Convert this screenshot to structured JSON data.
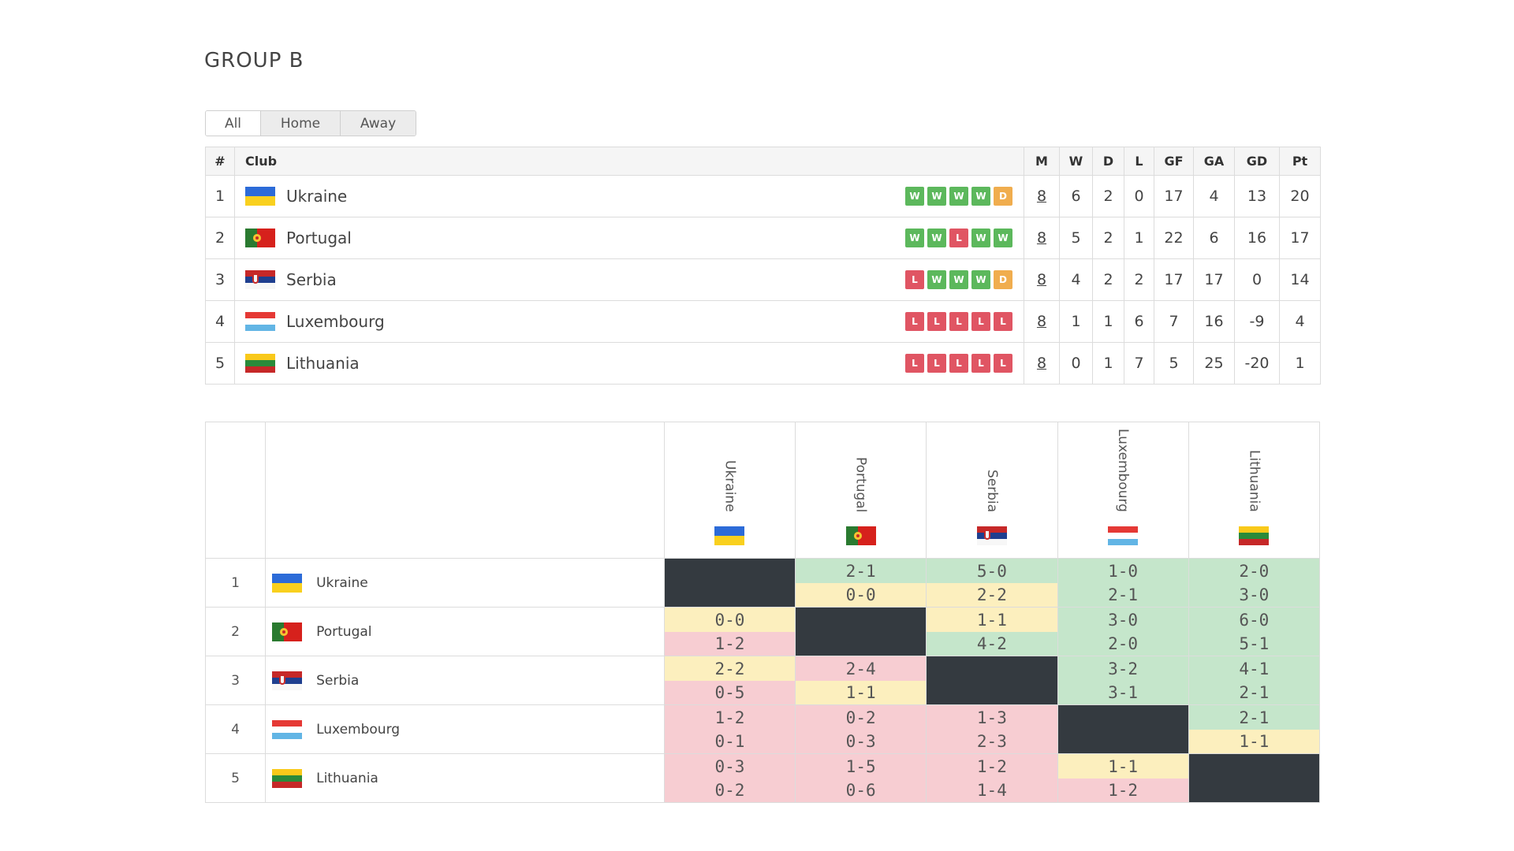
{
  "page": {
    "title": "GROUP B"
  },
  "tabs": [
    {
      "label": "All",
      "active": true
    },
    {
      "label": "Home",
      "active": false
    },
    {
      "label": "Away",
      "active": false
    }
  ],
  "colors": {
    "win": "#5cb85c",
    "draw": "#f0ad4e",
    "loss": "#e05563",
    "win_bg": "#c5e6cb",
    "draw_bg": "#fcefbe",
    "loss_bg": "#f7cdd2",
    "self_bg": "#343a40"
  },
  "standings": {
    "headers": [
      "#",
      "Club",
      "M",
      "W",
      "D",
      "L",
      "GF",
      "GA",
      "GD",
      "Pt"
    ],
    "rows": [
      {
        "pos": "1",
        "club": "Ukraine",
        "flag": "ukraine-flag-icon",
        "form": [
          "W",
          "W",
          "W",
          "W",
          "D"
        ],
        "m": "8",
        "w": "6",
        "d": "2",
        "l": "0",
        "gf": "17",
        "ga": "4",
        "gd": "13",
        "pt": "20"
      },
      {
        "pos": "2",
        "club": "Portugal",
        "flag": "portugal-flag-icon",
        "form": [
          "W",
          "W",
          "L",
          "W",
          "W"
        ],
        "m": "8",
        "w": "5",
        "d": "2",
        "l": "1",
        "gf": "22",
        "ga": "6",
        "gd": "16",
        "pt": "17"
      },
      {
        "pos": "3",
        "club": "Serbia",
        "flag": "serbia-flag-icon",
        "form": [
          "L",
          "W",
          "W",
          "W",
          "D"
        ],
        "m": "8",
        "w": "4",
        "d": "2",
        "l": "2",
        "gf": "17",
        "ga": "17",
        "gd": "0",
        "pt": "14"
      },
      {
        "pos": "4",
        "club": "Luxembourg",
        "flag": "luxembourg-flag-icon",
        "form": [
          "L",
          "L",
          "L",
          "L",
          "L"
        ],
        "m": "8",
        "w": "1",
        "d": "1",
        "l": "6",
        "gf": "7",
        "ga": "16",
        "gd": "-9",
        "pt": "4"
      },
      {
        "pos": "5",
        "club": "Lithuania",
        "flag": "lithuania-flag-icon",
        "form": [
          "L",
          "L",
          "L",
          "L",
          "L"
        ],
        "m": "8",
        "w": "0",
        "d": "1",
        "l": "7",
        "gf": "5",
        "ga": "25",
        "gd": "-20",
        "pt": "1"
      }
    ]
  },
  "results": {
    "columns": [
      "Ukraine",
      "Portugal",
      "Serbia",
      "Luxembourg",
      "Lithuania"
    ],
    "rows": [
      {
        "pos": "1",
        "club": "Ukraine",
        "cells": [
          null,
          [
            [
              "2-1",
              "win"
            ],
            [
              "0-0",
              "draw"
            ]
          ],
          [
            [
              "5-0",
              "win"
            ],
            [
              "2-2",
              "draw"
            ]
          ],
          [
            [
              "1-0",
              "win"
            ],
            [
              "2-1",
              "win"
            ]
          ],
          [
            [
              "2-0",
              "win"
            ],
            [
              "3-0",
              "win"
            ]
          ]
        ]
      },
      {
        "pos": "2",
        "club": "Portugal",
        "cells": [
          [
            [
              "0-0",
              "draw"
            ],
            [
              "1-2",
              "loss"
            ]
          ],
          null,
          [
            [
              "1-1",
              "draw"
            ],
            [
              "4-2",
              "win"
            ]
          ],
          [
            [
              "3-0",
              "win"
            ],
            [
              "2-0",
              "win"
            ]
          ],
          [
            [
              "6-0",
              "win"
            ],
            [
              "5-1",
              "win"
            ]
          ]
        ]
      },
      {
        "pos": "3",
        "club": "Serbia",
        "cells": [
          [
            [
              "2-2",
              "draw"
            ],
            [
              "0-5",
              "loss"
            ]
          ],
          [
            [
              "2-4",
              "loss"
            ],
            [
              "1-1",
              "draw"
            ]
          ],
          null,
          [
            [
              "3-2",
              "win"
            ],
            [
              "3-1",
              "win"
            ]
          ],
          [
            [
              "4-1",
              "win"
            ],
            [
              "2-1",
              "win"
            ]
          ]
        ]
      },
      {
        "pos": "4",
        "club": "Luxembourg",
        "cells": [
          [
            [
              "1-2",
              "loss"
            ],
            [
              "0-1",
              "loss"
            ]
          ],
          [
            [
              "0-2",
              "loss"
            ],
            [
              "0-3",
              "loss"
            ]
          ],
          [
            [
              "1-3",
              "loss"
            ],
            [
              "2-3",
              "loss"
            ]
          ],
          null,
          [
            [
              "2-1",
              "win"
            ],
            [
              "1-1",
              "draw"
            ]
          ]
        ]
      },
      {
        "pos": "5",
        "club": "Lithuania",
        "cells": [
          [
            [
              "0-3",
              "loss"
            ],
            [
              "0-2",
              "loss"
            ]
          ],
          [
            [
              "1-5",
              "loss"
            ],
            [
              "0-6",
              "loss"
            ]
          ],
          [
            [
              "1-2",
              "loss"
            ],
            [
              "1-4",
              "loss"
            ]
          ],
          [
            [
              "1-1",
              "draw"
            ],
            [
              "1-2",
              "loss"
            ]
          ],
          null
        ]
      }
    ]
  }
}
